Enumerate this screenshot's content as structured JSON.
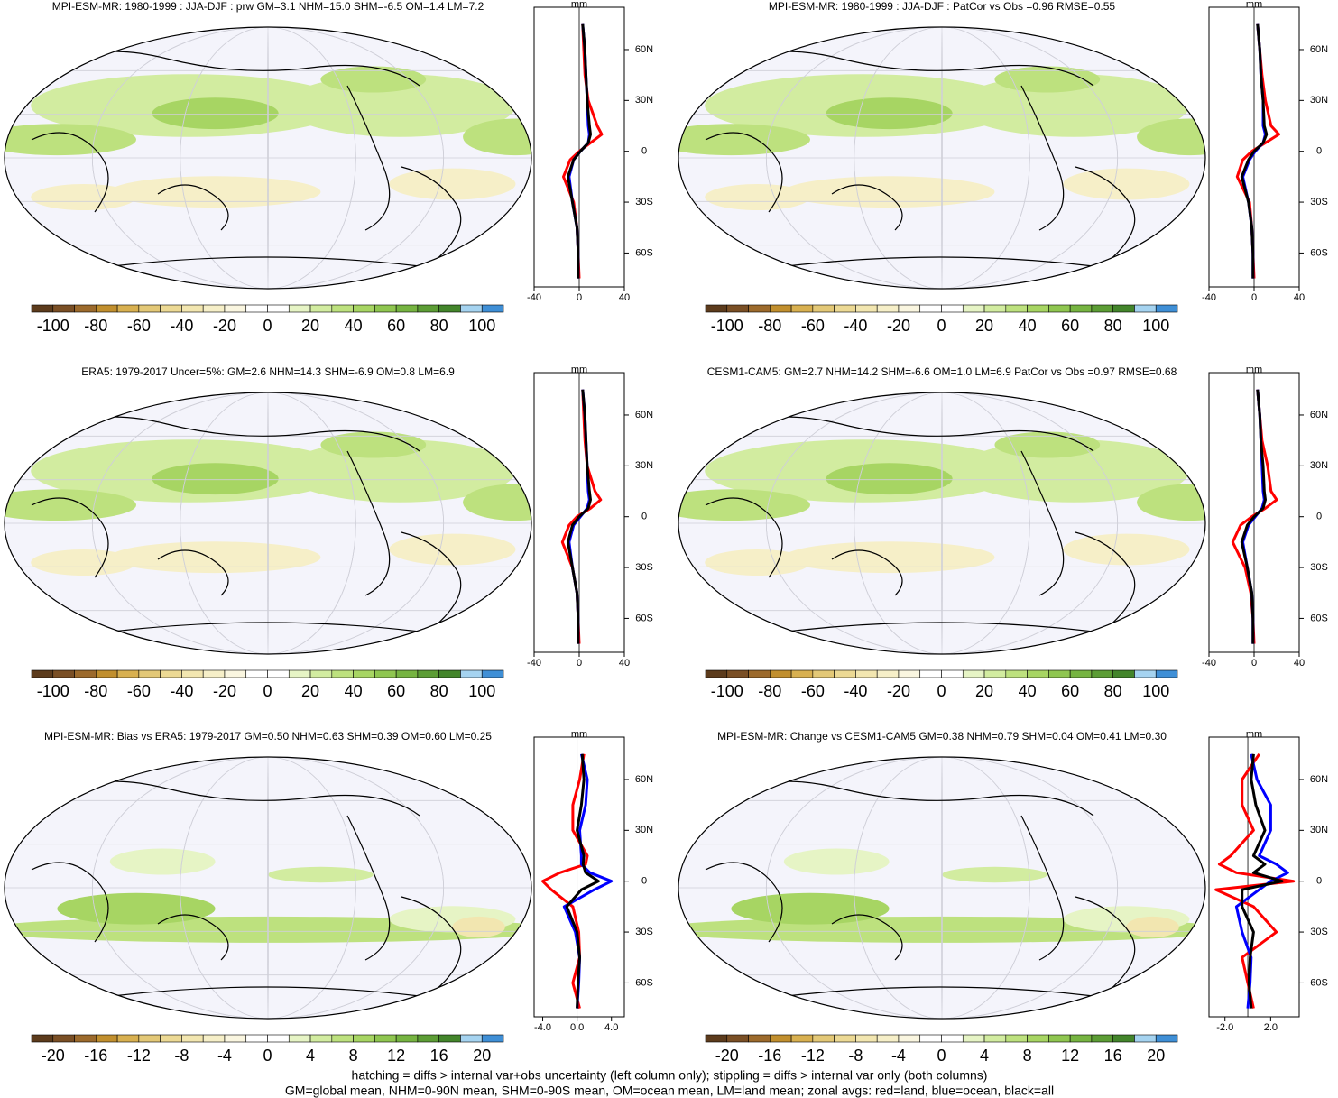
{
  "chart_data": [
    {
      "type": "map",
      "title": "MPI-ESM-MR: 1980-1999 : JJA-DJF : prw GM=3.1 NHM=15.0 SHM=-6.5 OM=1.4 LM=7.2",
      "colorbar": {
        "colors": [
          "#5c3b1c",
          "#7a4f25",
          "#9c6a2c",
          "#c18f2e",
          "#d8b050",
          "#e3c877",
          "#ecd994",
          "#f2e6b0",
          "#f6efc8",
          "#faf6e0",
          "#ffffff",
          "#ffffff",
          "#e6f4c5",
          "#d2eca0",
          "#bde17e",
          "#a7d563",
          "#8fc650",
          "#76b441",
          "#5c9d35",
          "#43852b",
          "#a5d3f0",
          "#3f8fd6"
        ],
        "lim": [
          -110,
          110
        ],
        "ticks": [
          -100,
          -80,
          -60,
          -40,
          -20,
          0,
          20,
          40,
          60,
          80,
          100
        ]
      },
      "zonal": {
        "type": "line",
        "unit": "mm",
        "xlim": [
          -40,
          40
        ],
        "xticks": [
          -40,
          0,
          40
        ],
        "ylim": [
          -80,
          85
        ],
        "yticks": [
          {
            "value": 60,
            "label": "60N"
          },
          {
            "value": 30,
            "label": "30N"
          },
          0,
          {
            "value": -30,
            "label": "30S"
          },
          {
            "value": -60,
            "label": "60S"
          }
        ],
        "y": [
          -75,
          -60,
          -45,
          -30,
          -15,
          -5,
          0,
          5,
          10,
          15,
          30,
          45,
          60,
          75
        ],
        "series": [
          {
            "color": "#ff0000",
            "values": [
              0,
              -1,
              -2,
              -5,
              -14,
              -8,
              0,
              10,
              20,
              16,
              8,
              5,
              4,
              3
            ]
          },
          {
            "color": "#0000ff",
            "values": [
              -1,
              -1,
              -2,
              -6,
              -9,
              -5,
              1,
              8,
              9,
              8,
              7,
              6,
              5,
              3
            ]
          },
          {
            "color": "#000000",
            "values": [
              -1,
              -1,
              -2,
              -6,
              -10,
              -5,
              1,
              8,
              10,
              9,
              7,
              6,
              5,
              3
            ]
          }
        ]
      }
    },
    {
      "type": "map",
      "title": "MPI-ESM-MR: 1980-1999 : JJA-DJF : PatCor vs Obs =0.96 RMSE=0.55",
      "colorbar": {
        "colors": [
          "#5c3b1c",
          "#7a4f25",
          "#9c6a2c",
          "#c18f2e",
          "#d8b050",
          "#e3c877",
          "#ecd994",
          "#f2e6b0",
          "#f6efc8",
          "#faf6e0",
          "#ffffff",
          "#ffffff",
          "#e6f4c5",
          "#d2eca0",
          "#bde17e",
          "#a7d563",
          "#8fc650",
          "#76b441",
          "#5c9d35",
          "#43852b",
          "#a5d3f0",
          "#3f8fd6"
        ],
        "lim": [
          -110,
          110
        ],
        "ticks": [
          -100,
          -80,
          -60,
          -40,
          -20,
          0,
          20,
          40,
          60,
          80,
          100
        ]
      },
      "zonal": {
        "type": "line",
        "unit": "mm",
        "xlim": [
          -40,
          40
        ],
        "xticks": [
          -40,
          0,
          40
        ],
        "ylim": [
          -80,
          85
        ],
        "yticks": [
          {
            "value": 60,
            "label": "60N"
          },
          {
            "value": 30,
            "label": "30N"
          },
          0,
          {
            "value": -30,
            "label": "30S"
          },
          {
            "value": -60,
            "label": "60S"
          }
        ],
        "y": [
          -75,
          -60,
          -45,
          -30,
          -15,
          -5,
          0,
          5,
          10,
          15,
          30,
          45,
          60,
          75
        ],
        "series": [
          {
            "color": "#ff0000",
            "values": [
              0,
              -1,
              -2,
              -4,
              -15,
              -10,
              -2,
              10,
              22,
              15,
              10,
              7,
              5,
              3
            ]
          },
          {
            "color": "#0000ff",
            "values": [
              -1,
              -1,
              -2,
              -5,
              -10,
              -4,
              1,
              8,
              10,
              8,
              8,
              6,
              5,
              3
            ]
          },
          {
            "color": "#000000",
            "values": [
              -1,
              -1,
              -2,
              -5,
              -11,
              -5,
              0,
              8,
              11,
              9,
              8,
              6,
              5,
              3
            ]
          }
        ]
      }
    },
    {
      "type": "map",
      "title": "ERA5: 1979-2017 Uncer=5%: GM=2.6 NHM=14.3 SHM=-6.9 OM=0.8 LM=6.9",
      "colorbar": {
        "colors": [
          "#5c3b1c",
          "#7a4f25",
          "#9c6a2c",
          "#c18f2e",
          "#d8b050",
          "#e3c877",
          "#ecd994",
          "#f2e6b0",
          "#f6efc8",
          "#faf6e0",
          "#ffffff",
          "#ffffff",
          "#e6f4c5",
          "#d2eca0",
          "#bde17e",
          "#a7d563",
          "#8fc650",
          "#76b441",
          "#5c9d35",
          "#43852b",
          "#a5d3f0",
          "#3f8fd6"
        ],
        "lim": [
          -110,
          110
        ],
        "ticks": [
          -100,
          -80,
          -60,
          -40,
          -20,
          0,
          20,
          40,
          60,
          80,
          100
        ]
      },
      "zonal": {
        "type": "line",
        "unit": "mm",
        "xlim": [
          -40,
          40
        ],
        "xticks": [
          -40,
          0,
          40
        ],
        "ylim": [
          -80,
          85
        ],
        "yticks": [
          {
            "value": 60,
            "label": "60N"
          },
          {
            "value": 30,
            "label": "30N"
          },
          0,
          {
            "value": -30,
            "label": "30S"
          },
          {
            "value": -60,
            "label": "60S"
          }
        ],
        "y": [
          -75,
          -60,
          -45,
          -30,
          -15,
          -5,
          0,
          5,
          10,
          15,
          30,
          45,
          60,
          75
        ],
        "series": [
          {
            "color": "#ff0000",
            "values": [
              0,
              -1,
              -2,
              -6,
              -15,
              -9,
              -2,
              10,
              19,
              14,
              7,
              5,
              4,
              3
            ]
          },
          {
            "color": "#0000ff",
            "values": [
              -1,
              -1,
              -2,
              -6,
              -9,
              -5,
              1,
              7,
              9,
              8,
              7,
              6,
              5,
              3
            ]
          },
          {
            "color": "#000000",
            "values": [
              -1,
              -1,
              -2,
              -6,
              -10,
              -6,
              0,
              8,
              10,
              9,
              7,
              6,
              5,
              3
            ]
          }
        ]
      }
    },
    {
      "type": "map",
      "title": "CESM1-CAM5: GM=2.7 NHM=14.2 SHM=-6.6 OM=1.0 LM=6.9 PatCor vs Obs =0.97 RMSE=0.68",
      "colorbar": {
        "colors": [
          "#5c3b1c",
          "#7a4f25",
          "#9c6a2c",
          "#c18f2e",
          "#d8b050",
          "#e3c877",
          "#ecd994",
          "#f2e6b0",
          "#f6efc8",
          "#faf6e0",
          "#ffffff",
          "#ffffff",
          "#e6f4c5",
          "#d2eca0",
          "#bde17e",
          "#a7d563",
          "#8fc650",
          "#76b441",
          "#5c9d35",
          "#43852b",
          "#a5d3f0",
          "#3f8fd6"
        ],
        "lim": [
          -110,
          110
        ],
        "ticks": [
          -100,
          -80,
          -60,
          -40,
          -20,
          0,
          20,
          40,
          60,
          80,
          100
        ]
      },
      "zonal": {
        "type": "line",
        "unit": "mm",
        "xlim": [
          -40,
          40
        ],
        "xticks": [
          -40,
          0,
          40
        ],
        "ylim": [
          -80,
          85
        ],
        "yticks": [
          {
            "value": 60,
            "label": "60N"
          },
          {
            "value": 30,
            "label": "30N"
          },
          0,
          {
            "value": -30,
            "label": "30S"
          },
          {
            "value": -60,
            "label": "60S"
          }
        ],
        "y": [
          -75,
          -60,
          -45,
          -30,
          -15,
          -5,
          0,
          5,
          10,
          15,
          30,
          45,
          60,
          75
        ],
        "series": [
          {
            "color": "#ff0000",
            "values": [
              0,
              -1,
              -3,
              -8,
              -19,
              -12,
              -2,
              10,
              20,
              15,
              12,
              7,
              5,
              3
            ]
          },
          {
            "color": "#0000ff",
            "values": [
              -1,
              -1,
              -2,
              -6,
              -10,
              -5,
              1,
              7,
              9,
              8,
              7,
              6,
              5,
              3
            ]
          },
          {
            "color": "#000000",
            "values": [
              -1,
              -1,
              -2,
              -6,
              -11,
              -6,
              0,
              8,
              10,
              9,
              8,
              6,
              5,
              3
            ]
          }
        ]
      }
    },
    {
      "type": "map",
      "title": "MPI-ESM-MR: Bias vs ERA5: 1979-2017 GM=0.50 NHM=0.63 SHM=0.39 OM=0.60 LM=0.25",
      "colorbar": {
        "colors": [
          "#5c3b1c",
          "#7a4f25",
          "#9c6a2c",
          "#c18f2e",
          "#d8b050",
          "#e3c877",
          "#ecd994",
          "#f2e6b0",
          "#f6efc8",
          "#faf6e0",
          "#ffffff",
          "#ffffff",
          "#e6f4c5",
          "#d2eca0",
          "#bde17e",
          "#a7d563",
          "#8fc650",
          "#76b441",
          "#5c9d35",
          "#43852b",
          "#a5d3f0",
          "#3f8fd6"
        ],
        "lim": [
          -22,
          22
        ],
        "ticks": [
          -20,
          -16,
          -12,
          -8,
          -4,
          0,
          4,
          8,
          12,
          16,
          20
        ]
      },
      "zonal": {
        "type": "line",
        "unit": "mm",
        "xlim": [
          -5,
          5.5
        ],
        "xticks": [
          {
            "value": -4,
            "label": "-4.0"
          },
          {
            "value": 0,
            "label": "0.0"
          },
          {
            "value": 4,
            "label": "4.0"
          }
        ],
        "ylim": [
          -80,
          85
        ],
        "yticks": [
          {
            "value": 60,
            "label": "60N"
          },
          {
            "value": 30,
            "label": "30N"
          },
          0,
          {
            "value": -30,
            "label": "30S"
          },
          {
            "value": -60,
            "label": "60S"
          }
        ],
        "y": [
          -75,
          -60,
          -45,
          -30,
          -15,
          -5,
          0,
          5,
          10,
          15,
          30,
          45,
          60,
          75
        ],
        "series": [
          {
            "color": "#ff0000",
            "values": [
              0.3,
              -0.5,
              0.3,
              0.2,
              -0.5,
              -3,
              -4,
              -2,
              1,
              1.2,
              -0.5,
              -0.5,
              0.3,
              0.8
            ]
          },
          {
            "color": "#0000ff",
            "values": [
              0,
              0.2,
              0.3,
              -0.2,
              -1.5,
              2,
              4,
              1.5,
              0.5,
              0.5,
              0.3,
              1,
              1.2,
              0.5
            ]
          },
          {
            "color": "#000000",
            "values": [
              0,
              0.1,
              0.3,
              0,
              -1.2,
              0.5,
              2.5,
              1,
              0.7,
              0.8,
              0,
              0.5,
              0.8,
              0.6
            ]
          }
        ]
      }
    },
    {
      "type": "map",
      "title": "MPI-ESM-MR: Change vs CESM1-CAM5 GM=0.38 NHM=0.79 SHM=0.04 OM=0.41 LM=0.30",
      "colorbar": {
        "colors": [
          "#5c3b1c",
          "#7a4f25",
          "#9c6a2c",
          "#c18f2e",
          "#d8b050",
          "#e3c877",
          "#ecd994",
          "#f2e6b0",
          "#f6efc8",
          "#faf6e0",
          "#ffffff",
          "#ffffff",
          "#e6f4c5",
          "#d2eca0",
          "#bde17e",
          "#a7d563",
          "#8fc650",
          "#76b441",
          "#5c9d35",
          "#43852b",
          "#a5d3f0",
          "#3f8fd6"
        ],
        "lim": [
          -22,
          22
        ],
        "ticks": [
          -20,
          -16,
          -12,
          -8,
          -4,
          0,
          4,
          8,
          12,
          16,
          20
        ]
      },
      "zonal": {
        "type": "line",
        "unit": "mm",
        "xlim": [
          -3.4,
          4.5
        ],
        "xticks": [
          {
            "value": -2,
            "label": "-2.0"
          },
          {
            "value": 2,
            "label": "2.0"
          }
        ],
        "ylim": [
          -80,
          85
        ],
        "yticks": [
          {
            "value": 60,
            "label": "60N"
          },
          {
            "value": 30,
            "label": "30N"
          },
          0,
          {
            "value": -30,
            "label": "30S"
          },
          {
            "value": -60,
            "label": "60S"
          }
        ],
        "y": [
          -75,
          -60,
          -45,
          -30,
          -15,
          -5,
          0,
          5,
          10,
          15,
          30,
          45,
          60,
          75
        ],
        "series": [
          {
            "color": "#ff0000",
            "values": [
              0.5,
              0,
              -0.5,
              2.5,
              0.5,
              -2.8,
              4,
              -1,
              -2.5,
              -1.5,
              0.5,
              -0.5,
              -0.5,
              1
            ]
          },
          {
            "color": "#0000ff",
            "values": [
              0,
              0.2,
              0.3,
              -0.5,
              -1,
              1,
              2,
              3.5,
              2.5,
              1,
              2,
              2,
              0.8,
              0.3
            ]
          },
          {
            "color": "#000000",
            "values": [
              0.3,
              0.1,
              0.2,
              0.5,
              -0.5,
              -0.5,
              3,
              0.5,
              1.5,
              0.5,
              1.5,
              0.7,
              0.3,
              0.5
            ]
          }
        ]
      }
    }
  ],
  "footnote": [
    "hatching = diffs > internal var+obs uncertainty (left column only); stippling = diffs > internal var only (both columns)",
    "GM=global mean, NHM=0-90N mean, SHM=0-90S mean, OM=ocean mean, LM=land mean; zonal avgs: red=land, blue=ocean, black=all"
  ]
}
